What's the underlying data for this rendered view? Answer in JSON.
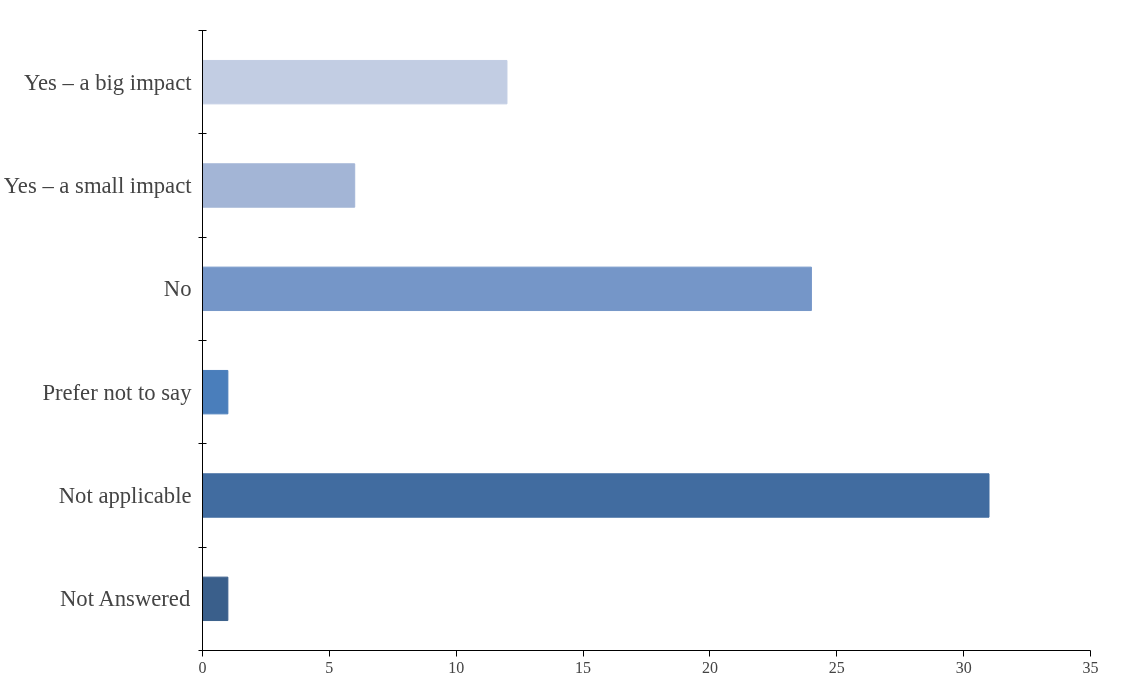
{
  "chart_data": {
    "type": "bar",
    "orientation": "horizontal",
    "categories": [
      "Yes – a big impact",
      "Yes – a small impact",
      "No",
      "Prefer not to say",
      "Not applicable",
      "Not Answered"
    ],
    "values": [
      12,
      6,
      24,
      1,
      31,
      1
    ],
    "colors": [
      "#c2cde3",
      "#a3b5d6",
      "#7596c8",
      "#4a7ebb",
      "#416ca0",
      "#3a5f8b"
    ],
    "xlim": [
      0,
      35
    ],
    "xticks": [
      0,
      5,
      10,
      15,
      20,
      25,
      30,
      35
    ],
    "grid": false
  }
}
